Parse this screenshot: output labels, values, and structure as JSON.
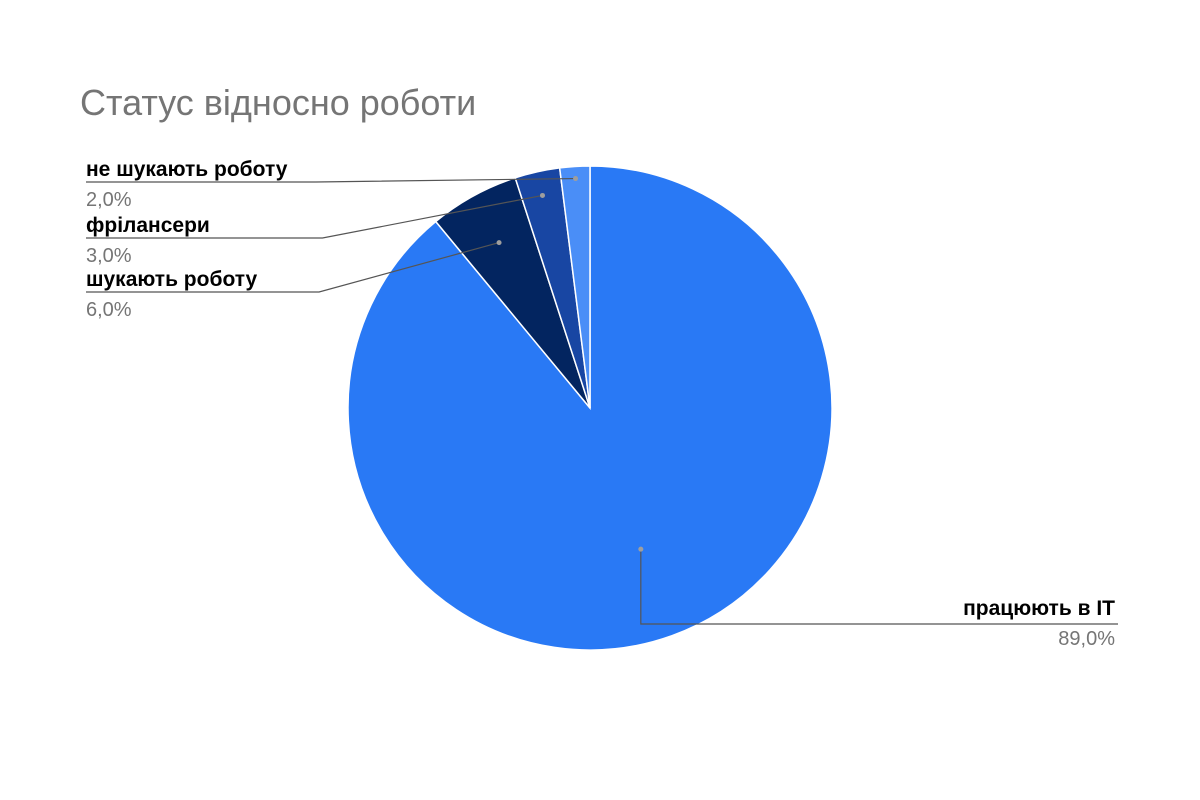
{
  "chart_data": {
    "type": "pie",
    "title": "Статус відносно роботи",
    "slices": [
      {
        "label": "працюють в IT",
        "value": 89.0,
        "value_label": "89,0%",
        "color": "#2979f5"
      },
      {
        "label": "шукають роботу",
        "value": 6.0,
        "value_label": "6,0%",
        "color": "#032560"
      },
      {
        "label": "фрілансери",
        "value": 3.0,
        "value_label": "3,0%",
        "color": "#1846a3"
      },
      {
        "label": "не шукають роботу",
        "value": 2.0,
        "value_label": "2,0%",
        "color": "#4a8ef7"
      }
    ],
    "start_angle_deg": 0,
    "direction": "clockwise",
    "legend": "none",
    "label_style": "leader-lines"
  }
}
